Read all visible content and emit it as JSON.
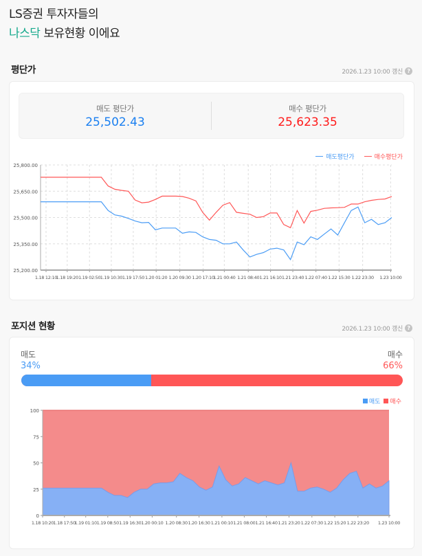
{
  "header": {
    "line1": "LS증권 투자자들의",
    "accent": "나스닥",
    "line2_rest": " 보유현황 이에요"
  },
  "avg_section": {
    "title": "평단가",
    "updated": "2026.1.23 10:00 갱신",
    "help_icon": "question-circle-icon",
    "sell_label": "매도 평단가",
    "sell_value": "25,502.43",
    "buy_label": "매수 평단가",
    "buy_value": "25,623.35"
  },
  "position_section": {
    "title": "포지션 현황",
    "updated": "2026.1.23 10:00 갱신",
    "sell_label": "매도",
    "sell_pct": "34%",
    "buy_label": "매수",
    "buy_pct": "66%",
    "sell_fraction": 0.34
  },
  "colors": {
    "sell": "#4a9cf5",
    "buy": "#ff5656",
    "accent": "#16a98c",
    "sell_text": "#1a7ff0",
    "buy_text": "#ff1a1a"
  },
  "chart_data": [
    {
      "type": "line",
      "legend": [
        "매도평단가",
        "매수평단가"
      ],
      "legend_placement": "top-right",
      "grid": true,
      "ylim": [
        25200,
        25800
      ],
      "yticks": [
        "25,200.00",
        "25,350.00",
        "25,500.00",
        "25,650.00",
        "25,800.00"
      ],
      "xticks": [
        "1.18 12:10",
        "1.18 19:20",
        "1.19 02:50",
        "1.19 10:30",
        "1.19 17:50",
        "1.20 01:20",
        "1.20 09:30",
        "1.20 17:10",
        "1.21 00:40",
        "1.21 08:40",
        "1.21 16:10",
        "1.21 23:40",
        "1.22 07:40",
        "1.22 15:30",
        "1.22 23:30",
        "1.23 10:00"
      ],
      "series": [
        {
          "name": "매도평단가",
          "values": [
            25590,
            25590,
            25590,
            25590,
            25590,
            25590,
            25590,
            25590,
            25590,
            25590,
            25540,
            25515,
            25508,
            25495,
            25480,
            25470,
            25472,
            25430,
            25440,
            25440,
            25440,
            25410,
            25418,
            25415,
            25390,
            25375,
            25370,
            25350,
            25350,
            25360,
            25315,
            25275,
            25290,
            25300,
            25320,
            25325,
            25315,
            25260,
            25360,
            25345,
            25390,
            25375,
            25405,
            25435,
            25400,
            25470,
            25540,
            25560,
            25470,
            25490,
            25460,
            25470,
            25500
          ]
        },
        {
          "name": "매수평단가",
          "values": [
            25730,
            25730,
            25730,
            25730,
            25730,
            25730,
            25730,
            25730,
            25730,
            25730,
            25680,
            25661,
            25655,
            25650,
            25600,
            25584,
            25588,
            25603,
            25622,
            25622,
            25622,
            25620,
            25610,
            25595,
            25530,
            25485,
            25530,
            25570,
            25585,
            25530,
            25524,
            25519,
            25500,
            25505,
            25526,
            25526,
            25460,
            25442,
            25540,
            25468,
            25535,
            25542,
            25552,
            25555,
            25556,
            25558,
            25577,
            25577,
            25590,
            25598,
            25603,
            25606,
            25620
          ]
        }
      ]
    },
    {
      "type": "area",
      "stacked_percent": true,
      "legend": [
        "매도",
        "매수"
      ],
      "legend_placement": "top-right",
      "ylim": [
        0,
        100
      ],
      "yticks": [
        "0",
        "25",
        "50",
        "75",
        "100"
      ],
      "xticks": [
        "1.18 10:20",
        "1.18 17:50",
        "1.19 01:10",
        "1.19 08:50",
        "1.19 16:30",
        "1.20 00:10",
        "1.20 08:30",
        "1.20 16:30",
        "1.21 00:10",
        "1.21 08:00",
        "1.21 16:40",
        "1.21 23:20",
        "1.22 07:30",
        "1.22 15:20",
        "1.22 23:20",
        "1.23 10:00"
      ],
      "series": [
        {
          "name": "매도",
          "values": [
            26,
            26,
            26,
            26,
            26,
            26,
            26,
            26,
            26,
            26,
            22,
            19,
            19,
            17,
            22,
            25,
            25,
            30,
            31,
            31,
            32,
            40,
            36,
            33,
            27,
            24,
            27,
            47,
            34,
            28,
            30,
            36,
            33,
            30,
            33,
            31,
            29,
            31,
            50,
            23,
            23,
            26,
            27,
            25,
            22,
            26,
            34,
            40,
            42,
            26,
            30,
            26,
            28,
            33
          ]
        },
        {
          "name": "매수",
          "fill_to": 100
        }
      ]
    }
  ]
}
